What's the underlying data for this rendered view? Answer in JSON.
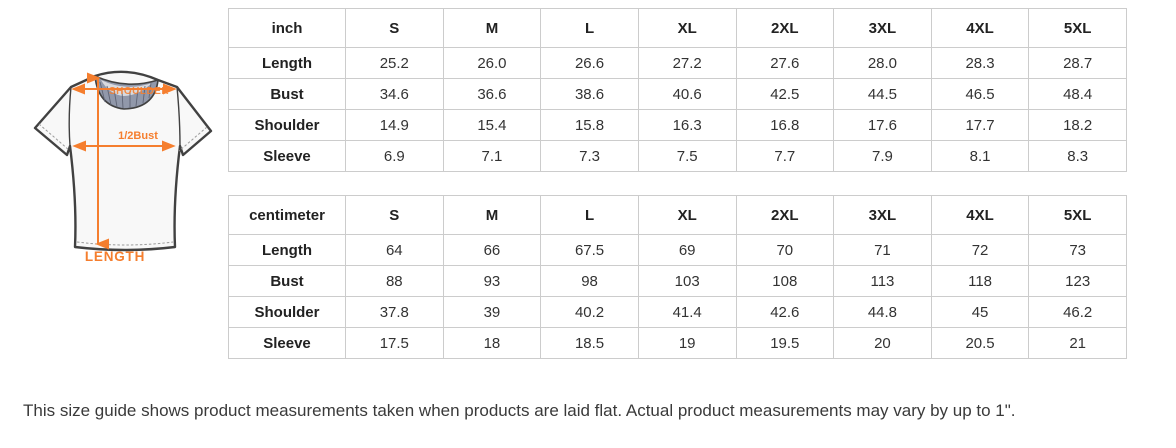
{
  "diagram": {
    "shoulder_label": "SHOULDER",
    "bust_label": "1/2Bust",
    "length_label": "LENGTH",
    "accent_color": "#f57e2e",
    "collar_color": "#9198aa",
    "shirt_fill": "#f8f8f8",
    "outline_color": "#414141"
  },
  "size_tables": [
    {
      "unit_header": "inch",
      "size_headers": [
        "S",
        "M",
        "L",
        "XL",
        "2XL",
        "3XL",
        "4XL",
        "5XL"
      ],
      "rows": [
        {
          "label": "Length",
          "values": [
            "25.2",
            "26.0",
            "26.6",
            "27.2",
            "27.6",
            "28.0",
            "28.3",
            "28.7"
          ]
        },
        {
          "label": "Bust",
          "values": [
            "34.6",
            "36.6",
            "38.6",
            "40.6",
            "42.5",
            "44.5",
            "46.5",
            "48.4"
          ]
        },
        {
          "label": "Shoulder",
          "values": [
            "14.9",
            "15.4",
            "15.8",
            "16.3",
            "16.8",
            "17.6",
            "17.7",
            "18.2"
          ]
        },
        {
          "label": "Sleeve",
          "values": [
            "6.9",
            "7.1",
            "7.3",
            "7.5",
            "7.7",
            "7.9",
            "8.1",
            "8.3"
          ]
        }
      ]
    },
    {
      "unit_header": "centimeter",
      "size_headers": [
        "S",
        "M",
        "L",
        "XL",
        "2XL",
        "3XL",
        "4XL",
        "5XL"
      ],
      "rows": [
        {
          "label": "Length",
          "values": [
            "64",
            "66",
            "67.5",
            "69",
            "70",
            "71",
            "72",
            "73"
          ]
        },
        {
          "label": "Bust",
          "values": [
            "88",
            "93",
            "98",
            "103",
            "108",
            "113",
            "118",
            "123"
          ]
        },
        {
          "label": "Shoulder",
          "values": [
            "37.8",
            "39",
            "40.2",
            "41.4",
            "42.6",
            "44.8",
            "45",
            "46.2"
          ]
        },
        {
          "label": "Sleeve",
          "values": [
            "17.5",
            "18",
            "18.5",
            "19",
            "19.5",
            "20",
            "20.5",
            "21"
          ]
        }
      ]
    }
  ],
  "footer_note": "This size guide shows product measurements taken when products are laid flat. Actual product measurements may vary by up to 1\"."
}
